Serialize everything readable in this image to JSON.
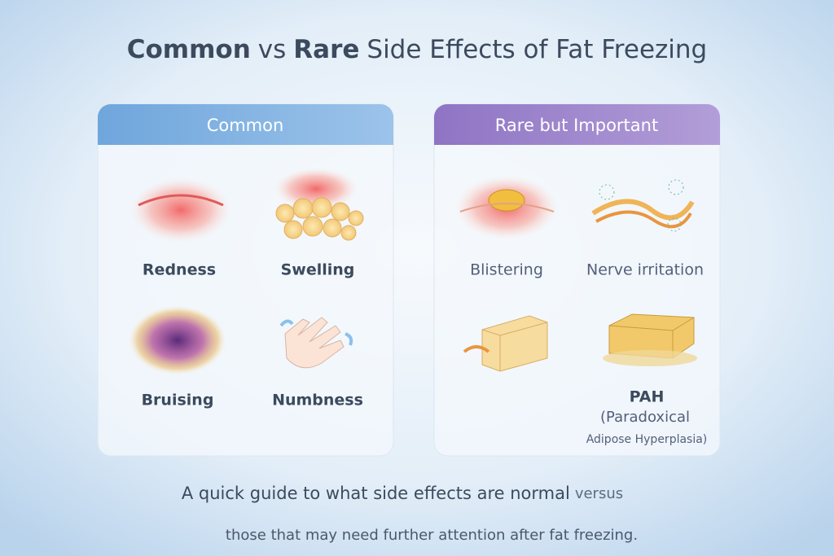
{
  "title": {
    "parts": [
      "Common",
      "vs",
      "Rare",
      "Side Effects of Fat Freezing"
    ]
  },
  "panels": [
    {
      "heading": "Common",
      "items": [
        {
          "label": "Redness"
        },
        {
          "label": "Swelling"
        },
        {
          "label": "Bruising"
        },
        {
          "label": "Numbness"
        }
      ]
    },
    {
      "heading": "Rare but Important",
      "items": [
        {
          "label": "Blistering"
        },
        {
          "label": "Nerve irritation"
        },
        {
          "label": "PAH",
          "detail": [
            "(Paradoxical",
            "Adipose Hyperplasia)"
          ]
        }
      ]
    }
  ],
  "footer": {
    "line1": {
      "main": "A quick guide to what side effects are normal",
      "light": "versus"
    },
    "line2": "those that may need further attention after fat freezing."
  }
}
